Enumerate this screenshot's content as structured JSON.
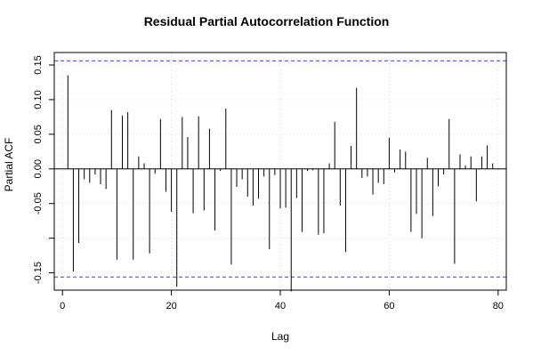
{
  "chart_data": {
    "type": "bar",
    "title": "Residual Partial Autocorrelation Function",
    "xlabel": "Lag",
    "ylabel": "Partial ACF",
    "xlim": [
      -1.5,
      81.5
    ],
    "ylim": [
      -0.175,
      0.168
    ],
    "x_ticks": [
      0,
      20,
      40,
      60,
      80
    ],
    "x_tick_labels": [
      "0",
      "20",
      "40",
      "60",
      "80"
    ],
    "y_ticks": [
      -0.15,
      -0.1,
      -0.05,
      0.0,
      0.05,
      0.1,
      0.15
    ],
    "y_tick_labels": [
      "-0.15",
      "",
      "-0.05",
      "0.00",
      "0.05",
      "0.10",
      "0.15"
    ],
    "grid": true,
    "confidence_bounds": [
      0.156,
      -0.156
    ],
    "x": [
      1,
      2,
      3,
      4,
      5,
      6,
      7,
      8,
      9,
      10,
      11,
      12,
      13,
      14,
      15,
      16,
      17,
      18,
      19,
      20,
      21,
      22,
      23,
      24,
      25,
      26,
      27,
      28,
      29,
      30,
      31,
      32,
      33,
      34,
      35,
      36,
      37,
      38,
      39,
      40,
      41,
      42,
      43,
      44,
      45,
      46,
      47,
      48,
      49,
      50,
      51,
      52,
      53,
      54,
      55,
      56,
      57,
      58,
      59,
      60,
      61,
      62,
      63,
      64,
      65,
      66,
      67,
      68,
      69,
      70,
      71,
      72,
      73,
      74,
      75,
      76,
      77,
      78,
      79,
      80
    ],
    "values": [
      0.135,
      -0.148,
      -0.107,
      -0.015,
      -0.02,
      -0.008,
      -0.022,
      -0.029,
      0.085,
      -0.131,
      0.077,
      0.082,
      -0.131,
      0.018,
      0.008,
      -0.122,
      -0.007,
      0.072,
      -0.033,
      -0.062,
      -0.17,
      0.075,
      0.046,
      -0.064,
      0.076,
      -0.06,
      0.058,
      -0.089,
      -0.003,
      0.087,
      -0.138,
      -0.026,
      -0.015,
      -0.04,
      -0.053,
      -0.043,
      -0.011,
      -0.116,
      -0.009,
      -0.057,
      -0.056,
      -0.177,
      -0.042,
      -0.091,
      -0.003,
      -0.002,
      -0.095,
      -0.093,
      0.008,
      0.068,
      -0.053,
      -0.12,
      0.033,
      0.117,
      -0.013,
      -0.011,
      -0.037,
      -0.02,
      -0.022,
      0.045,
      -0.005,
      0.028,
      0.025,
      -0.091,
      -0.065,
      -0.1,
      0.016,
      -0.068,
      -0.025,
      -0.008,
      0.072,
      -0.137,
      0.021,
      0.005,
      0.018,
      -0.047,
      0.018,
      0.034,
      0.008,
      -0.001
    ],
    "colors": {
      "bars": "#000000",
      "confidence": "#3344ee",
      "grid": "#d0d0d0",
      "frame": "#000000"
    }
  }
}
